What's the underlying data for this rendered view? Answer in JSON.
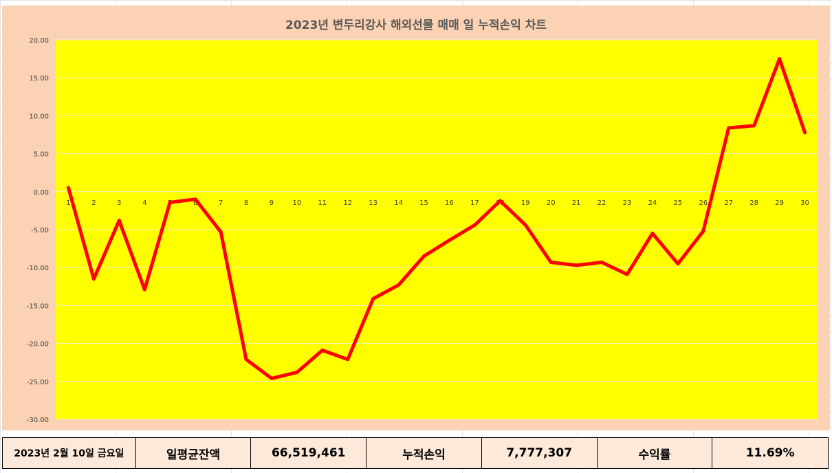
{
  "chart_data": {
    "type": "line",
    "title": "2023년 변두리강사 해외선물 매매 일 누적손익 차트",
    "categories": [
      "1",
      "2",
      "3",
      "4",
      "5",
      "6",
      "7",
      "8",
      "9",
      "10",
      "11",
      "12",
      "13",
      "14",
      "15",
      "16",
      "17",
      "18",
      "19",
      "20",
      "21",
      "22",
      "23",
      "24",
      "25",
      "26",
      "27",
      "28",
      "29",
      "30"
    ],
    "series": [
      {
        "values": [
          0.5,
          -11.5,
          -3.8,
          -12.9,
          -1.4,
          -1.0,
          -5.3,
          -22.1,
          -24.6,
          -23.8,
          -20.9,
          -22.1,
          -14.1,
          -12.3,
          -8.5,
          -6.4,
          -4.4,
          -1.2,
          -4.4,
          -9.3,
          -9.7,
          -9.3,
          -10.9,
          -5.5,
          -9.5,
          -5.2,
          8.4,
          8.7,
          17.5,
          7.8
        ]
      }
    ],
    "yticks": [
      "20.00",
      "15.00",
      "10.00",
      "5.00",
      "0.00",
      "-5.00",
      "-10.00",
      "-15.00",
      "-20.00",
      "-25.00",
      "-30.00"
    ],
    "ylim": [
      -30,
      20
    ],
    "grid": true,
    "colors": {
      "plot_bg": "#ffff00",
      "chart_bg": "#fbd2b4",
      "line": "#ff0000",
      "grid": "#f0f0c8"
    }
  },
  "summary": {
    "date": "2023년 2월 10일 금요일",
    "balance_label": "일평균잔액",
    "balance_value": "66,519,461",
    "pnl_label": "누적손익",
    "pnl_value": "7,777,307",
    "return_label": "수익률",
    "return_value": "11.69%"
  }
}
